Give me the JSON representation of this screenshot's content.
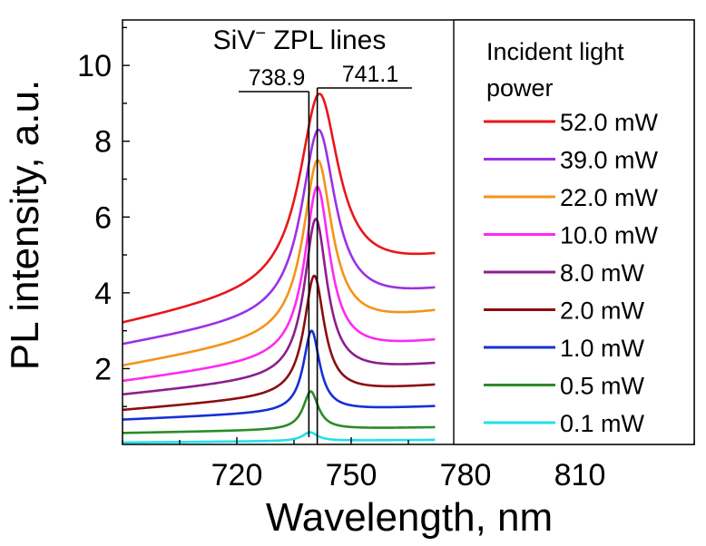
{
  "chart_data": {
    "type": "line",
    "title": "",
    "xlabel": "Wavelength, nm",
    "ylabel": "PL intensity, a.u.",
    "xlim": [
      690,
      840
    ],
    "ylim": [
      0,
      11.2
    ],
    "xticks": [
      720,
      750,
      780,
      810
    ],
    "yticks": [
      2,
      4,
      6,
      8,
      10
    ],
    "grid": false,
    "data_x_range": [
      690,
      772
    ],
    "annotation": {
      "title_main": "SiV",
      "title_sup": "−",
      "title_rest": " ZPL lines",
      "lines": [
        {
          "label": "738.9",
          "x": 738.9
        },
        {
          "label": "741.1",
          "x": 741.1
        }
      ]
    },
    "legend": {
      "title_line1": "Incident light",
      "title_line2": "power",
      "position": "right"
    },
    "series": [
      {
        "name": "52.0 mW",
        "color": "#e8161a",
        "base_left": 3.15,
        "base_right": 4.85,
        "peak": 9.25,
        "peak_x": 741.6,
        "gamma": 6.2
      },
      {
        "name": "39.0 mW",
        "color": "#9b30e6",
        "base_left": 2.6,
        "base_right": 4.0,
        "peak": 8.3,
        "peak_x": 741.4,
        "gamma": 5.4
      },
      {
        "name": "22.0 mW",
        "color": "#f39417",
        "base_left": 2.05,
        "base_right": 3.45,
        "peak": 7.5,
        "peak_x": 741.2,
        "gamma": 4.6
      },
      {
        "name": "10.0 mW",
        "color": "#ff28f4",
        "base_left": 1.65,
        "base_right": 2.7,
        "peak": 6.8,
        "peak_x": 741.1,
        "gamma": 4.0
      },
      {
        "name": "8.0 mW",
        "color": "#8c1e8e",
        "base_left": 1.3,
        "base_right": 2.1,
        "peak": 5.95,
        "peak_x": 740.7,
        "gamma": 3.6
      },
      {
        "name": "2.0 mW",
        "color": "#8b0e10",
        "base_left": 0.9,
        "base_right": 1.55,
        "peak": 4.45,
        "peak_x": 740.3,
        "gamma": 3.2
      },
      {
        "name": "1.0 mW",
        "color": "#1530d6",
        "base_left": 0.65,
        "base_right": 1.0,
        "peak": 3.0,
        "peak_x": 739.6,
        "gamma": 2.6
      },
      {
        "name": "0.5 mW",
        "color": "#2a8c28",
        "base_left": 0.3,
        "base_right": 0.45,
        "peak": 1.4,
        "peak_x": 739.4,
        "gamma": 2.4
      },
      {
        "name": "0.1 mW",
        "color": "#22e0ea",
        "base_left": 0.05,
        "base_right": 0.12,
        "peak": 0.32,
        "peak_x": 739.2,
        "gamma": 2.4
      }
    ]
  }
}
